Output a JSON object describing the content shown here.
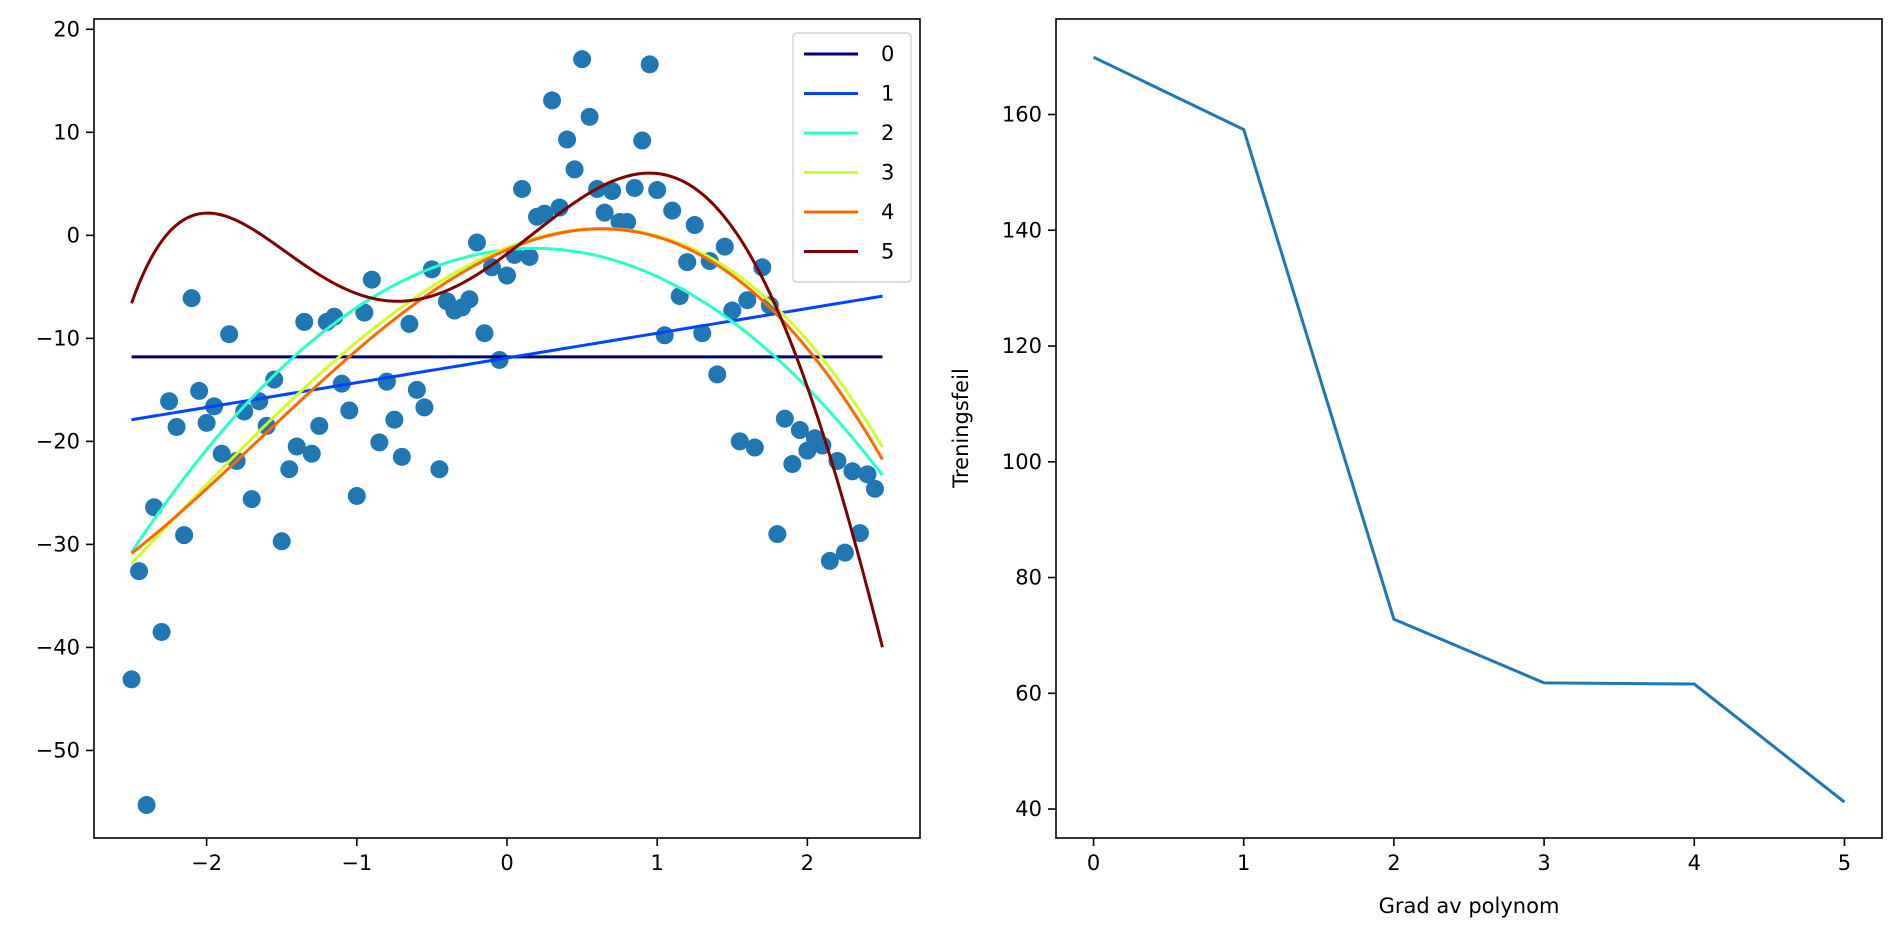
{
  "chart_data": [
    {
      "type": "scatter",
      "title": "",
      "xlabel": "",
      "ylabel": "",
      "xlim": [
        -2.75,
        2.75
      ],
      "ylim": [
        -58.5,
        21
      ],
      "xticks": [
        -2,
        -1,
        0,
        1,
        2
      ],
      "yticks": [
        -50,
        -40,
        -30,
        -20,
        -10,
        0,
        10,
        20
      ],
      "grid": false,
      "legend_position": "top-right",
      "point_color": "#1f77b4",
      "points": [
        [
          -2.5,
          -43.1
        ],
        [
          -2.45,
          -32.6
        ],
        [
          -2.4,
          -55.3
        ],
        [
          -2.35,
          -26.4
        ],
        [
          -2.3,
          -38.5
        ],
        [
          -2.25,
          -16.1
        ],
        [
          -2.2,
          -18.6
        ],
        [
          -2.15,
          -29.1
        ],
        [
          -2.1,
          -6.1
        ],
        [
          -2.05,
          -15.1
        ],
        [
          -2.0,
          -18.2
        ],
        [
          -1.95,
          -16.6
        ],
        [
          -1.9,
          -21.2
        ],
        [
          -1.85,
          -9.6
        ],
        [
          -1.8,
          -21.9
        ],
        [
          -1.75,
          -17.1
        ],
        [
          -1.7,
          -25.6
        ],
        [
          -1.65,
          -16.1
        ],
        [
          -1.6,
          -18.5
        ],
        [
          -1.55,
          -14.0
        ],
        [
          -1.5,
          -29.7
        ],
        [
          -1.45,
          -22.7
        ],
        [
          -1.4,
          -20.5
        ],
        [
          -1.35,
          -8.4
        ],
        [
          -1.3,
          -21.2
        ],
        [
          -1.25,
          -18.5
        ],
        [
          -1.2,
          -8.4
        ],
        [
          -1.15,
          -7.9
        ],
        [
          -1.1,
          -14.4
        ],
        [
          -1.05,
          -17.0
        ],
        [
          -1.0,
          -25.3
        ],
        [
          -0.95,
          -7.5
        ],
        [
          -0.9,
          -4.3
        ],
        [
          -0.85,
          -20.1
        ],
        [
          -0.8,
          -14.2
        ],
        [
          -0.75,
          -17.9
        ],
        [
          -0.7,
          -21.5
        ],
        [
          -0.65,
          -8.6
        ],
        [
          -0.6,
          -15.0
        ],
        [
          -0.55,
          -16.7
        ],
        [
          -0.5,
          -3.3
        ],
        [
          -0.45,
          -22.7
        ],
        [
          -0.4,
          -6.4
        ],
        [
          -0.35,
          -7.3
        ],
        [
          -0.3,
          -7.0
        ],
        [
          -0.25,
          -6.2
        ],
        [
          -0.2,
          -0.7
        ],
        [
          -0.15,
          -9.5
        ],
        [
          -0.1,
          -3.1
        ],
        [
          -0.05,
          -12.1
        ],
        [
          0.0,
          -3.9
        ],
        [
          0.05,
          -1.9
        ],
        [
          0.1,
          4.5
        ],
        [
          0.15,
          -2.1
        ],
        [
          0.2,
          1.8
        ],
        [
          0.25,
          2.1
        ],
        [
          0.3,
          13.1
        ],
        [
          0.35,
          2.7
        ],
        [
          0.4,
          9.3
        ],
        [
          0.45,
          6.4
        ],
        [
          0.5,
          17.1
        ],
        [
          0.55,
          11.5
        ],
        [
          0.6,
          4.5
        ],
        [
          0.65,
          2.2
        ],
        [
          0.7,
          4.3
        ],
        [
          0.75,
          1.3
        ],
        [
          0.8,
          1.3
        ],
        [
          0.85,
          4.6
        ],
        [
          0.9,
          9.2
        ],
        [
          0.95,
          16.6
        ],
        [
          1.0,
          4.4
        ],
        [
          1.05,
          -9.7
        ],
        [
          1.1,
          2.4
        ],
        [
          1.15,
          -5.9
        ],
        [
          1.2,
          -2.6
        ],
        [
          1.25,
          1.0
        ],
        [
          1.3,
          -9.5
        ],
        [
          1.35,
          -2.5
        ],
        [
          1.4,
          -13.5
        ],
        [
          1.45,
          -1.1
        ],
        [
          1.5,
          -7.3
        ],
        [
          1.55,
          -20.0
        ],
        [
          1.6,
          -6.3
        ],
        [
          1.65,
          -20.6
        ],
        [
          1.7,
          -3.1
        ],
        [
          1.75,
          -6.8
        ],
        [
          1.8,
          -29.0
        ],
        [
          1.85,
          -17.8
        ],
        [
          1.9,
          -22.2
        ],
        [
          1.95,
          -18.9
        ],
        [
          2.0,
          -20.9
        ],
        [
          2.05,
          -19.7
        ],
        [
          2.1,
          -20.4
        ],
        [
          2.15,
          -31.6
        ],
        [
          2.2,
          -21.9
        ],
        [
          2.25,
          -30.8
        ],
        [
          2.3,
          -22.9
        ],
        [
          2.35,
          -28.9
        ],
        [
          2.4,
          -23.2
        ],
        [
          2.45,
          -24.6
        ]
      ],
      "fit_range": [
        -2.5,
        2.5
      ],
      "series": [
        {
          "name": "0",
          "color": "#00007f",
          "coef": [
            -11.8
          ]
        },
        {
          "name": "1",
          "color": "#0044ff",
          "coef": [
            -11.9,
            2.4
          ]
        },
        {
          "name": "2",
          "color": "#2affcc",
          "coef": [
            -1.4,
            1.5,
            -4.1
          ]
        },
        {
          "name": "3",
          "color": "#ccff29",
          "coef": [
            -1.2,
            5.7,
            -4.0,
            -0.55
          ]
        },
        {
          "name": "4",
          "color": "#ff6800",
          "coef": [
            -1.4,
            6.2,
            -4.3,
            -0.7,
            0.05
          ]
        },
        {
          "name": "5",
          "color": "#7f0000",
          "coef": [
            -1.8,
            10.9,
            3.0,
            -5.5,
            -1.03,
            0.43
          ]
        }
      ]
    },
    {
      "type": "line",
      "title": "",
      "xlabel": "Grad av polynom",
      "ylabel": "Treningsfeil",
      "xlim": [
        -0.25,
        5.25
      ],
      "ylim": [
        35,
        176.5
      ],
      "xticks": [
        0,
        1,
        2,
        3,
        4,
        5
      ],
      "yticks": [
        40,
        60,
        80,
        100,
        120,
        140,
        160
      ],
      "grid": false,
      "color": "#1f77b4",
      "x": [
        0,
        1,
        2,
        3,
        4,
        5
      ],
      "y": [
        169.9,
        157.4,
        72.8,
        61.8,
        61.6,
        41.2
      ]
    }
  ]
}
